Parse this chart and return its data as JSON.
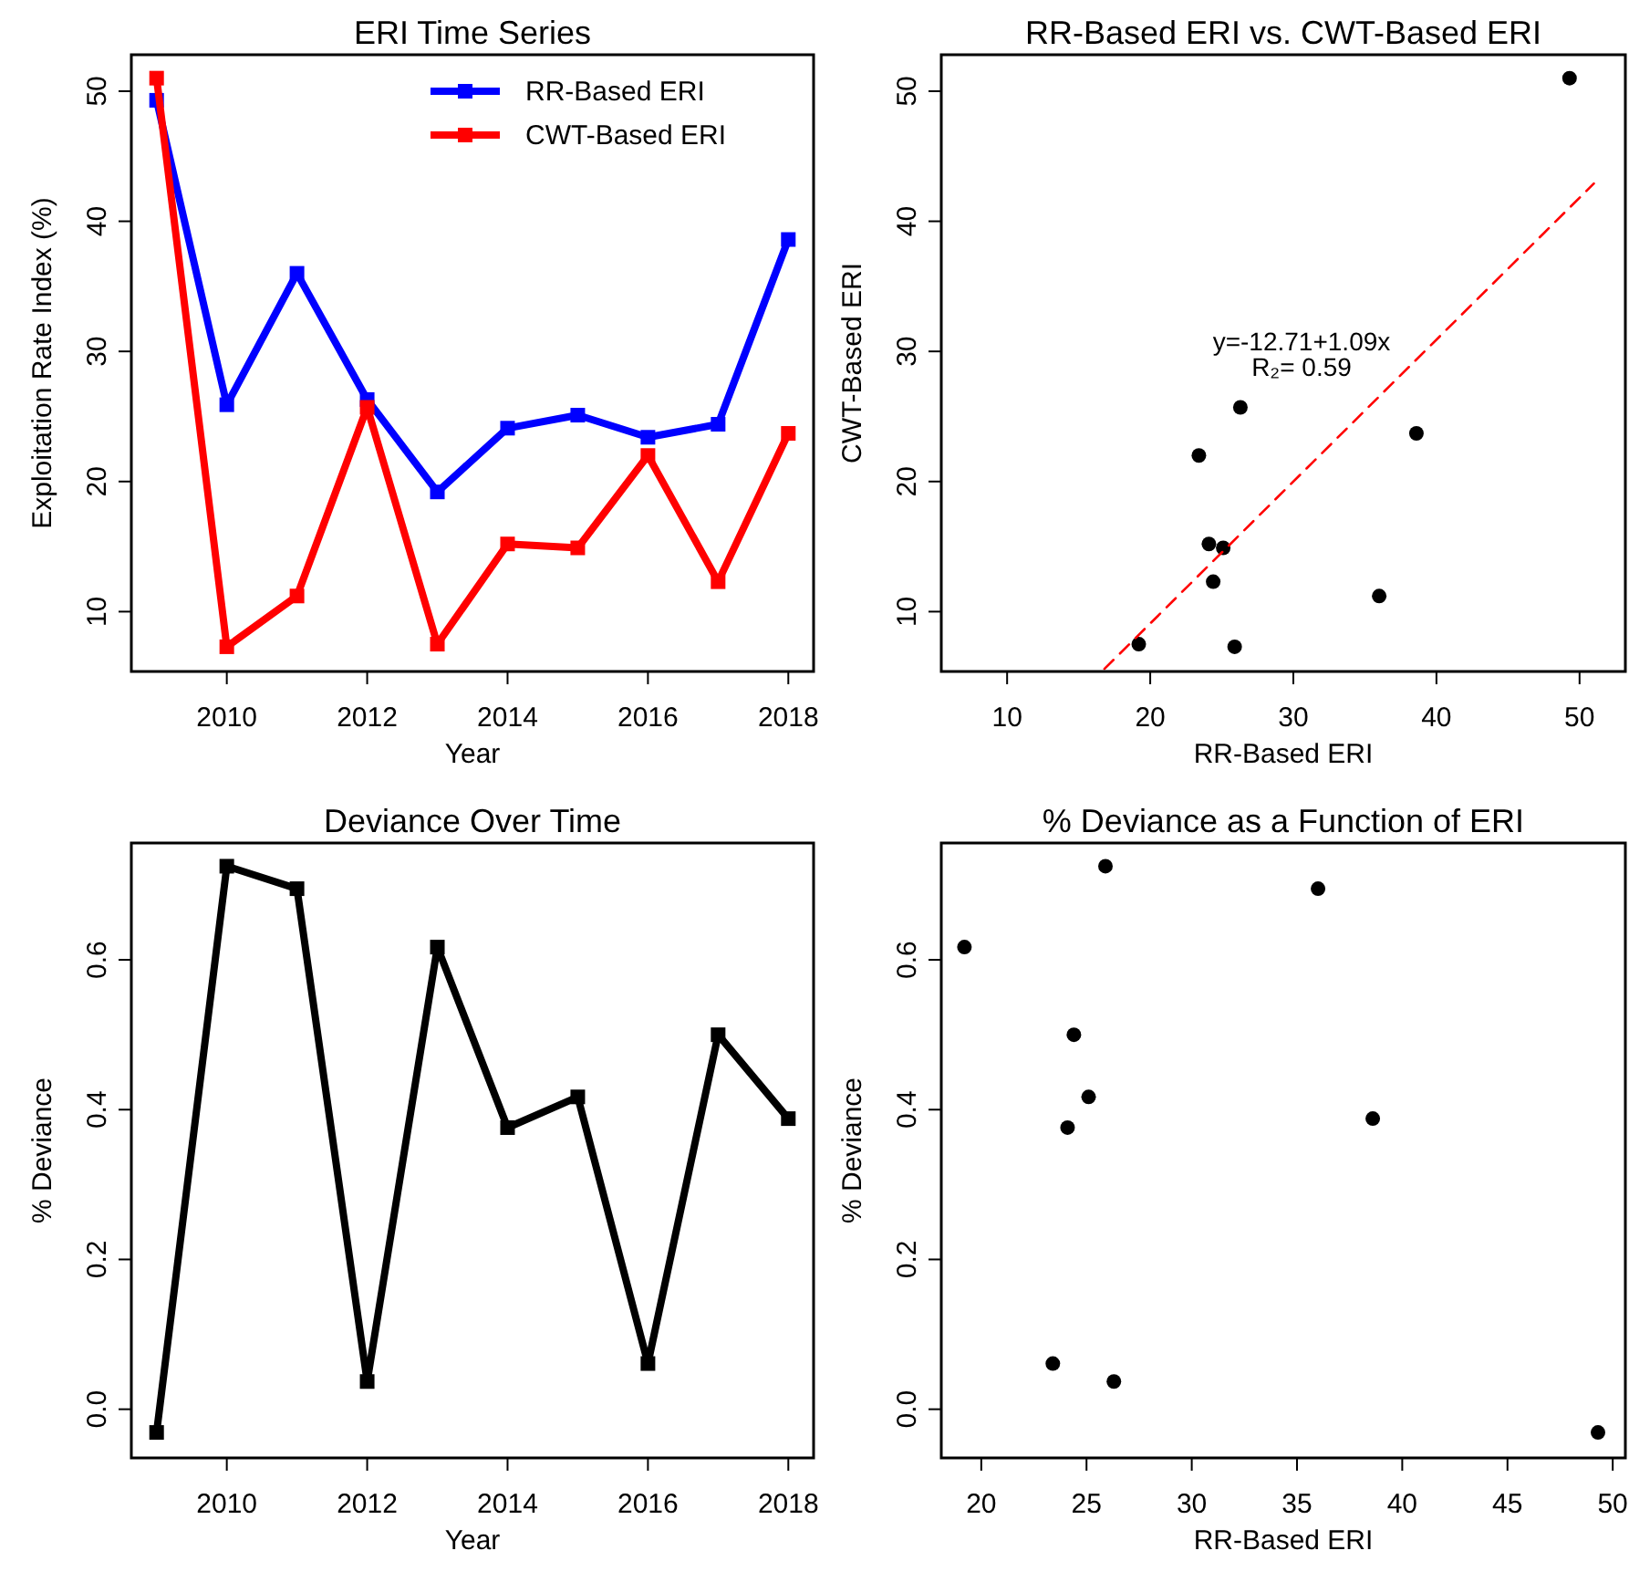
{
  "chart_data": [
    {
      "type": "line",
      "title": "ERI Time Series",
      "xlabel": "Year",
      "ylabel": "Exploitation Rate Index (%)",
      "x": [
        2009,
        2010,
        2011,
        2012,
        2013,
        2014,
        2015,
        2016,
        2017,
        2018
      ],
      "xlim": [
        2008.64,
        2018.36
      ],
      "xticks": [
        2010,
        2012,
        2014,
        2016,
        2018
      ],
      "ylim": [
        5.4,
        52.8
      ],
      "yticks": [
        10,
        20,
        30,
        40,
        50
      ],
      "marker": "square",
      "legend": "top right",
      "series": [
        {
          "name": "RR-Based ERI",
          "color": "#0000ff",
          "values": [
            49.3,
            25.9,
            36.0,
            26.3,
            19.2,
            24.1,
            25.1,
            23.4,
            24.4,
            38.6
          ]
        },
        {
          "name": "CWT-Based ERI",
          "color": "#ff0000",
          "values": [
            51.0,
            7.3,
            11.2,
            25.7,
            7.5,
            15.2,
            14.9,
            22.0,
            12.3,
            23.7
          ]
        }
      ]
    },
    {
      "type": "scatter",
      "title": "RR-Based ERI vs. CWT-Based ERI",
      "xlabel": "RR-Based ERI",
      "ylabel": "CWT-Based ERI",
      "xlim": [
        5.4,
        53.2
      ],
      "xticks": [
        10,
        20,
        30,
        40,
        50
      ],
      "ylim": [
        5.4,
        52.8
      ],
      "yticks": [
        10,
        20,
        30,
        40,
        50
      ],
      "marker": "circle",
      "annotations": [
        "y=-12.71+1.09x",
        "R₂= 0.59"
      ],
      "series": [
        {
          "color": "#000000",
          "x": [
            49.3,
            25.9,
            36.0,
            26.3,
            19.2,
            24.1,
            25.1,
            23.4,
            24.4,
            38.6
          ],
          "values": [
            51.0,
            7.3,
            11.2,
            25.7,
            7.5,
            15.2,
            14.9,
            22.0,
            12.3,
            23.7
          ]
        },
        {
          "type": "line",
          "color": "#ff0000",
          "line_style": "dashed",
          "marker": "none",
          "x": [
            16.8,
            51
          ],
          "values": [
            5.6,
            42.9
          ]
        }
      ]
    },
    {
      "type": "line",
      "title": "Deviance Over Time",
      "xlabel": "Year",
      "ylabel": "% Deviance",
      "x": [
        2009,
        2010,
        2011,
        2012,
        2013,
        2014,
        2015,
        2016,
        2017,
        2018
      ],
      "xlim": [
        2008.64,
        2018.36
      ],
      "xticks": [
        2010,
        2012,
        2014,
        2016,
        2018
      ],
      "ylim": [
        -0.065,
        0.756
      ],
      "yticks": [
        {
          "value": 0,
          "label": "0.0"
        },
        {
          "value": 0.2,
          "label": "0.2"
        },
        {
          "value": 0.4,
          "label": "0.4"
        },
        {
          "value": 0.6,
          "label": "0.6"
        }
      ],
      "marker": "square",
      "series": [
        {
          "color": "#000000",
          "values": [
            -0.031,
            0.725,
            0.695,
            0.037,
            0.617,
            0.376,
            0.417,
            0.061,
            0.5,
            0.388
          ]
        }
      ]
    },
    {
      "type": "scatter",
      "title": "% Deviance as a Function of ERI",
      "xlabel": "RR-Based ERI",
      "ylabel": "% Deviance",
      "xlim": [
        18.1,
        50.6
      ],
      "xticks": [
        20,
        25,
        30,
        35,
        40,
        45,
        50
      ],
      "ylim": [
        -0.065,
        0.756
      ],
      "yticks": [
        {
          "value": 0,
          "label": "0.0"
        },
        {
          "value": 0.2,
          "label": "0.2"
        },
        {
          "value": 0.4,
          "label": "0.4"
        },
        {
          "value": 0.6,
          "label": "0.6"
        }
      ],
      "marker": "circle",
      "series": [
        {
          "color": "#000000",
          "x": [
            49.3,
            25.9,
            36.0,
            26.3,
            19.2,
            24.1,
            25.1,
            23.4,
            24.4,
            38.6
          ],
          "values": [
            -0.031,
            0.725,
            0.695,
            0.037,
            0.617,
            0.376,
            0.417,
            0.061,
            0.5,
            0.388
          ]
        }
      ]
    }
  ]
}
